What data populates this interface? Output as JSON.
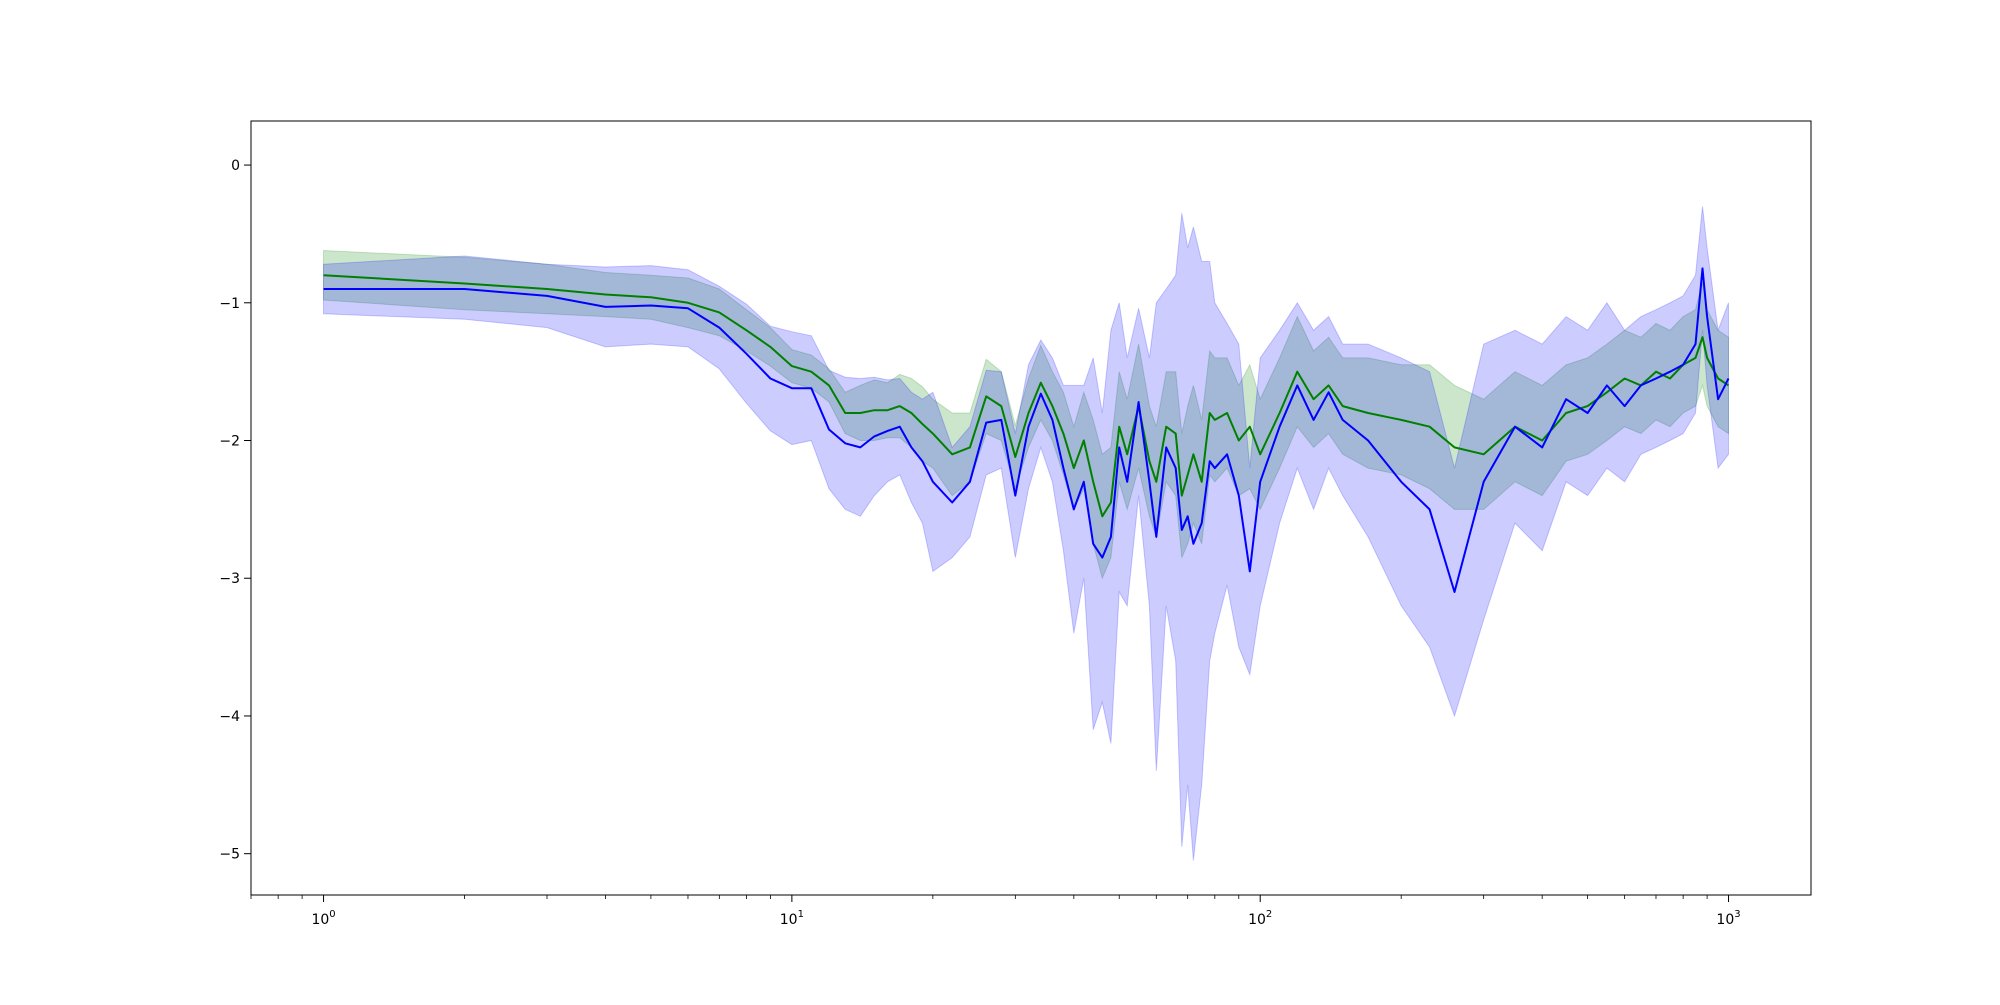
{
  "chart_data": {
    "type": "line",
    "title": "",
    "xlabel": "",
    "ylabel": "",
    "xscale": "log",
    "xlim": [
      0.7,
      1500
    ],
    "ylim": [
      -5.3,
      0.32
    ],
    "grid": false,
    "x_ticks": [
      {
        "value": 1,
        "base": "10",
        "exp": "0"
      },
      {
        "value": 10,
        "base": "10",
        "exp": "1"
      },
      {
        "value": 100,
        "base": "10",
        "exp": "2"
      },
      {
        "value": 1000,
        "base": "10",
        "exp": "3"
      }
    ],
    "y_ticks": [
      {
        "value": 0,
        "label": "0"
      },
      {
        "value": -1,
        "label": "−1"
      },
      {
        "value": -2,
        "label": "−2"
      },
      {
        "value": -3,
        "label": "−3"
      },
      {
        "value": -4,
        "label": "−4"
      },
      {
        "value": -5,
        "label": "−5"
      }
    ],
    "series": [
      {
        "color": "#008000",
        "band_color": "#008000",
        "band_opacity": 0.2,
        "x": [
          1,
          2,
          3,
          4,
          5,
          6,
          7,
          8,
          9,
          10,
          11,
          12,
          13,
          14,
          15,
          16,
          17,
          18,
          19,
          20,
          22,
          24,
          26,
          28,
          30,
          32,
          34,
          36,
          38,
          40,
          42,
          44,
          46,
          48,
          50,
          52,
          55,
          58,
          60,
          63,
          66,
          68,
          70,
          72,
          75,
          78,
          80,
          85,
          90,
          95,
          100,
          110,
          120,
          130,
          140,
          150,
          170,
          200,
          230,
          260,
          300,
          350,
          400,
          450,
          500,
          550,
          600,
          650,
          700,
          750,
          800,
          850,
          880,
          900,
          950,
          1000
        ],
        "y": [
          -0.8,
          -0.86,
          -0.9,
          -0.94,
          -0.96,
          -1.0,
          -1.07,
          -1.2,
          -1.32,
          -1.46,
          -1.5,
          -1.6,
          -1.8,
          -1.8,
          -1.78,
          -1.78,
          -1.75,
          -1.8,
          -1.88,
          -1.95,
          -2.1,
          -2.05,
          -1.68,
          -1.75,
          -2.12,
          -1.8,
          -1.58,
          -1.75,
          -1.95,
          -2.2,
          -2.0,
          -2.3,
          -2.55,
          -2.45,
          -1.9,
          -2.1,
          -1.75,
          -2.15,
          -2.3,
          -1.9,
          -1.95,
          -2.4,
          -2.25,
          -2.1,
          -2.3,
          -1.8,
          -1.85,
          -1.8,
          -2.0,
          -1.9,
          -2.1,
          -1.8,
          -1.5,
          -1.7,
          -1.6,
          -1.75,
          -1.8,
          -1.85,
          -1.9,
          -2.05,
          -2.1,
          -1.9,
          -2.0,
          -1.8,
          -1.75,
          -1.65,
          -1.55,
          -1.6,
          -1.5,
          -1.55,
          -1.45,
          -1.4,
          -1.25,
          -1.4,
          -1.55,
          -1.6
        ],
        "lower": [
          -0.98,
          -1.05,
          -1.08,
          -1.1,
          -1.12,
          -1.18,
          -1.24,
          -1.35,
          -1.46,
          -1.58,
          -1.62,
          -1.72,
          -1.95,
          -2.0,
          -2.0,
          -1.98,
          -1.98,
          -2.05,
          -2.15,
          -2.2,
          -2.4,
          -2.3,
          -1.95,
          -2.0,
          -2.35,
          -2.05,
          -1.85,
          -2.0,
          -2.25,
          -2.5,
          -2.35,
          -2.75,
          -3.0,
          -2.85,
          -2.3,
          -2.5,
          -2.2,
          -2.55,
          -2.7,
          -2.3,
          -2.4,
          -2.85,
          -2.75,
          -2.6,
          -2.75,
          -2.25,
          -2.3,
          -2.2,
          -2.4,
          -2.35,
          -2.5,
          -2.2,
          -1.9,
          -2.05,
          -1.95,
          -2.1,
          -2.2,
          -2.25,
          -2.35,
          -2.5,
          -2.5,
          -2.3,
          -2.4,
          -2.15,
          -2.1,
          -2.0,
          -1.9,
          -1.95,
          -1.85,
          -1.9,
          -1.8,
          -1.75,
          -1.6,
          -1.75,
          -1.9,
          -1.95
        ],
        "upper": [
          -0.62,
          -0.67,
          -0.72,
          -0.78,
          -0.8,
          -0.82,
          -0.9,
          -1.05,
          -1.18,
          -1.34,
          -1.38,
          -1.48,
          -1.65,
          -1.6,
          -1.56,
          -1.58,
          -1.52,
          -1.55,
          -1.61,
          -1.7,
          -1.8,
          -1.8,
          -1.41,
          -1.5,
          -1.89,
          -1.55,
          -1.31,
          -1.5,
          -1.65,
          -1.9,
          -1.65,
          -1.85,
          -2.1,
          -2.05,
          -1.5,
          -1.7,
          -1.3,
          -1.75,
          -1.9,
          -1.5,
          -1.5,
          -1.95,
          -1.75,
          -1.6,
          -1.85,
          -1.35,
          -1.4,
          -1.4,
          -1.6,
          -1.45,
          -1.7,
          -1.4,
          -1.1,
          -1.35,
          -1.25,
          -1.4,
          -1.4,
          -1.45,
          -1.45,
          -1.6,
          -1.7,
          -1.5,
          -1.6,
          -1.45,
          -1.4,
          -1.3,
          -1.2,
          -1.25,
          -1.15,
          -1.2,
          -1.1,
          -1.05,
          -0.85,
          -1.05,
          -1.2,
          -1.25
        ]
      },
      {
        "color": "#0000ff",
        "band_color": "#0000ff",
        "band_opacity": 0.2,
        "x": [
          1,
          2,
          3,
          4,
          5,
          6,
          7,
          8,
          9,
          10,
          11,
          12,
          13,
          14,
          15,
          16,
          17,
          18,
          19,
          20,
          22,
          24,
          26,
          28,
          30,
          32,
          34,
          36,
          38,
          40,
          42,
          44,
          46,
          48,
          50,
          52,
          55,
          58,
          60,
          63,
          66,
          68,
          70,
          72,
          75,
          78,
          80,
          85,
          90,
          95,
          100,
          110,
          120,
          130,
          140,
          150,
          170,
          200,
          230,
          260,
          300,
          350,
          400,
          450,
          500,
          550,
          600,
          650,
          700,
          750,
          800,
          850,
          880,
          900,
          950,
          1000
        ],
        "y": [
          -0.9,
          -0.9,
          -0.95,
          -1.03,
          -1.02,
          -1.04,
          -1.18,
          -1.37,
          -1.55,
          -1.62,
          -1.62,
          -1.92,
          -2.02,
          -2.05,
          -1.97,
          -1.93,
          -1.9,
          -2.05,
          -2.15,
          -2.3,
          -2.45,
          -2.3,
          -1.87,
          -1.85,
          -2.4,
          -1.9,
          -1.66,
          -1.85,
          -2.2,
          -2.5,
          -2.3,
          -2.75,
          -2.85,
          -2.7,
          -2.05,
          -2.3,
          -1.72,
          -2.3,
          -2.7,
          -2.05,
          -2.2,
          -2.65,
          -2.55,
          -2.75,
          -2.6,
          -2.15,
          -2.2,
          -2.1,
          -2.4,
          -2.95,
          -2.3,
          -1.9,
          -1.6,
          -1.85,
          -1.65,
          -1.85,
          -2.0,
          -2.3,
          -2.5,
          -3.1,
          -2.3,
          -1.9,
          -2.05,
          -1.7,
          -1.8,
          -1.6,
          -1.75,
          -1.6,
          -1.55,
          -1.5,
          -1.45,
          -1.3,
          -0.75,
          -1.1,
          -1.7,
          -1.55
        ],
        "lower": [
          -1.08,
          -1.12,
          -1.18,
          -1.32,
          -1.3,
          -1.32,
          -1.48,
          -1.73,
          -1.93,
          -2.03,
          -2.0,
          -2.35,
          -2.5,
          -2.55,
          -2.4,
          -2.3,
          -2.25,
          -2.45,
          -2.6,
          -2.95,
          -2.85,
          -2.7,
          -2.25,
          -2.2,
          -2.85,
          -2.35,
          -2.05,
          -2.3,
          -2.8,
          -3.4,
          -3.0,
          -4.1,
          -3.9,
          -4.2,
          -3.1,
          -3.2,
          -2.4,
          -3.2,
          -4.4,
          -3.2,
          -3.6,
          -4.95,
          -4.5,
          -5.05,
          -4.5,
          -3.6,
          -3.4,
          -3.05,
          -3.5,
          -3.7,
          -3.2,
          -2.6,
          -2.2,
          -2.5,
          -2.2,
          -2.4,
          -2.7,
          -3.2,
          -3.5,
          -4.0,
          -3.3,
          -2.6,
          -2.8,
          -2.3,
          -2.4,
          -2.2,
          -2.3,
          -2.1,
          -2.05,
          -2.0,
          -1.95,
          -1.8,
          -1.2,
          -1.6,
          -2.2,
          -2.1
        ],
        "upper": [
          -0.72,
          -0.66,
          -0.72,
          -0.74,
          -0.73,
          -0.76,
          -0.88,
          -1.01,
          -1.17,
          -1.21,
          -1.24,
          -1.49,
          -1.54,
          -1.55,
          -1.54,
          -1.56,
          -1.55,
          -1.65,
          -1.7,
          -1.65,
          -2.05,
          -1.9,
          -1.49,
          -1.5,
          -1.95,
          -1.45,
          -1.27,
          -1.4,
          -1.6,
          -1.6,
          -1.6,
          -1.4,
          -1.8,
          -1.2,
          -1.0,
          -1.4,
          -1.04,
          -1.4,
          -1.0,
          -0.9,
          -0.8,
          -0.35,
          -0.6,
          -0.45,
          -0.7,
          -0.7,
          -1.0,
          -1.15,
          -1.3,
          -2.2,
          -1.4,
          -1.2,
          -1.0,
          -1.2,
          -1.1,
          -1.3,
          -1.3,
          -1.4,
          -1.5,
          -2.2,
          -1.3,
          -1.2,
          -1.3,
          -1.1,
          -1.2,
          -1.0,
          -1.2,
          -1.1,
          -1.05,
          -1.0,
          -0.95,
          -0.8,
          -0.3,
          -0.6,
          -1.2,
          -1.0
        ]
      }
    ]
  }
}
